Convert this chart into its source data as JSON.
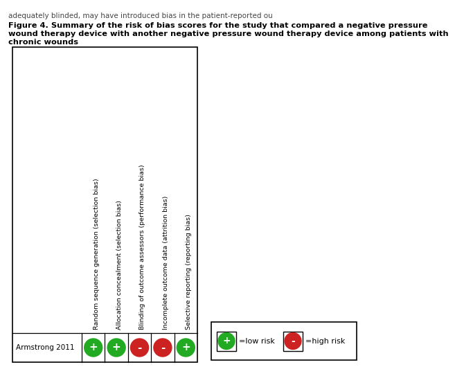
{
  "caption_line1": "adequately blinded, may have introduced bias in the patient-reported ou",
  "title_line1": "Figure 4. Summary of the risk of bias scores for the study that compared a negative pressure",
  "title_line2": "wound therapy device with another negative pressure wound therapy device among patients with",
  "title_line3": "chronic wounds",
  "study": "Armstrong 2011",
  "columns": [
    "Random sequence generation (selection bias)",
    "Allocation concealment (selection bias)",
    "Blinding of outcome assessors (performance bias)",
    "Incomplete outcome data (attrition bias)",
    "Selective reporting (reporting bias)"
  ],
  "ratings": [
    "low",
    "low",
    "high",
    "high",
    "low"
  ],
  "low_color": "#22aa22",
  "high_color": "#cc2222",
  "low_symbol": "+",
  "high_symbol": "-",
  "legend_low_label": "=low risk",
  "legend_high_label": "=high risk",
  "figure_bg": "#ffffff"
}
